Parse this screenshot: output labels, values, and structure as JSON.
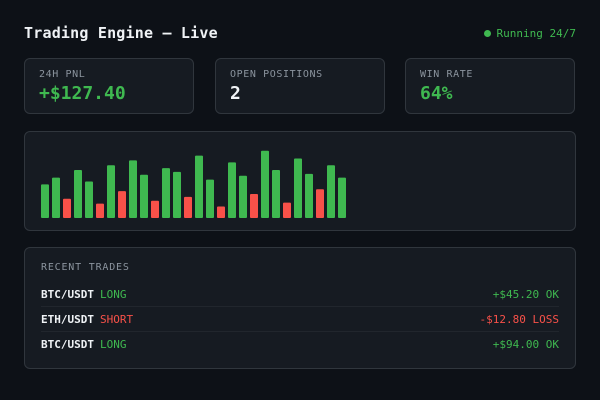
{
  "header": {
    "title": "Trading Engine — Live",
    "status_label": "Running 24/7"
  },
  "stats": [
    {
      "label": "24H PNL",
      "value": "+$127.40",
      "tone": "positive"
    },
    {
      "label": "OPEN POSITIONS",
      "value": "2",
      "tone": "neutral"
    },
    {
      "label": "WIN RATE",
      "value": "64%",
      "tone": "positive"
    }
  ],
  "chart_data": {
    "type": "bar",
    "title": "",
    "xlabel": "",
    "ylabel": "",
    "values": [
      35,
      42,
      20,
      50,
      38,
      15,
      55,
      28,
      60,
      45,
      18,
      52,
      48,
      22,
      65,
      40,
      12,
      58,
      44,
      25,
      70,
      50,
      16,
      62,
      46,
      30,
      55,
      42
    ],
    "outcomes": [
      "win",
      "win",
      "loss",
      "win",
      "win",
      "loss",
      "win",
      "loss",
      "win",
      "win",
      "loss",
      "win",
      "win",
      "loss",
      "win",
      "win",
      "loss",
      "win",
      "win",
      "loss",
      "win",
      "win",
      "loss",
      "win",
      "win",
      "loss",
      "win",
      "win"
    ],
    "ylim": [
      0,
      75
    ],
    "colors": {
      "win": "#3fb950",
      "loss": "#f85149"
    }
  },
  "trades": {
    "title": "RECENT TRADES",
    "rows": [
      {
        "pair": "BTC/USDT",
        "side": "LONG",
        "side_tone": "green",
        "result": "+$45.20 OK",
        "result_tone": "green"
      },
      {
        "pair": "ETH/USDT",
        "side": "SHORT",
        "side_tone": "red",
        "result": "-$12.80 LOSS",
        "result_tone": "red"
      },
      {
        "pair": "BTC/USDT",
        "side": "LONG",
        "side_tone": "green",
        "result": "+$94.00 OK",
        "result_tone": "green"
      }
    ]
  },
  "colors": {
    "background": "#0d1117",
    "card": "#161b22",
    "border": "#30363d",
    "positive": "#3fb950",
    "negative": "#f85149",
    "muted": "#8b949e"
  }
}
